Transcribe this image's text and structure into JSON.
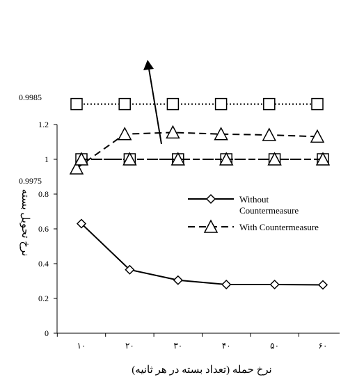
{
  "chart_data": [
    {
      "panel": "inset",
      "type": "line",
      "x": [
        "۱۰",
        "۲۰",
        "۳۰",
        "۴۰",
        "۵۰",
        "۶۰"
      ],
      "ylim": [
        0.9975,
        0.9985
      ],
      "yticks": [
        "0.9975",
        "0.9985"
      ],
      "series": [
        {
          "values": [
            0.99842,
            0.99842,
            0.99842,
            0.99842,
            0.99842,
            0.99842
          ],
          "marker": "square",
          "line": "dotted"
        },
        {
          "values": [
            0.99765,
            0.99806,
            0.99808,
            0.99806,
            0.99805,
            0.99803
          ],
          "marker": "triangle",
          "line": "dashed"
        }
      ]
    },
    {
      "panel": "main",
      "type": "line",
      "x": [
        "۱۰",
        "۲۰",
        "۳۰",
        "۴۰",
        "۵۰",
        "۶۰"
      ],
      "xlabel": "نرخ حمله (تعداد بسته در هر ثانیه)",
      "ylabel": "نرخ تحویل بسته",
      "ylim": [
        0,
        1.2
      ],
      "yticks": [
        "0",
        "0.2",
        "0.4",
        "0.6",
        "0.8",
        "1",
        "1.2"
      ],
      "legend_position": "right",
      "series": [
        {
          "name": "Without Countermeasure",
          "values": [
            0.63,
            0.365,
            0.305,
            0.28,
            0.28,
            0.278
          ],
          "marker": "diamond",
          "line": "solid"
        },
        {
          "name": "With Countermeasure",
          "values": [
            1.0,
            1.0,
            1.0,
            1.0,
            1.0,
            1.0
          ],
          "marker": "triangle",
          "line": "dashed"
        },
        {
          "values": [
            1.0,
            1.0,
            1.0,
            1.0,
            1.0,
            1.0
          ],
          "marker": "square",
          "line": "dash-dot"
        }
      ],
      "legend": [
        {
          "label_lines": [
            "Without",
            "Countermeasure"
          ]
        },
        {
          "label_lines": [
            "With Countermeasure"
          ]
        }
      ]
    }
  ]
}
